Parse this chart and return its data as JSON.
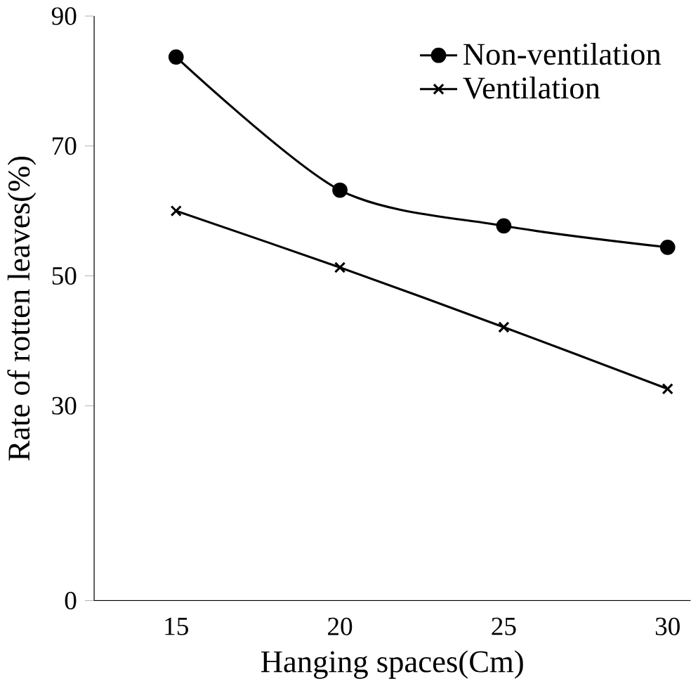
{
  "chart_data": {
    "type": "line",
    "xlabel": "Hanging spaces(Cm)",
    "ylabel": "Rate of rotten leaves(%)",
    "x": [
      15,
      20,
      25,
      30
    ],
    "series": [
      {
        "name": "Non-ventilation",
        "color": "#000000",
        "marker": "circle",
        "values": [
          83.7,
          63.2,
          57.7,
          54.4
        ]
      },
      {
        "name": "Ventilation",
        "color": "#000000",
        "marker": "cross",
        "values": [
          60,
          51.3,
          42.1,
          32.6
        ]
      }
    ],
    "xlim": [
      12.5,
      30.7
    ],
    "ylim": [
      0,
      90
    ],
    "xticks": [
      15,
      20,
      25,
      30
    ],
    "yticks": [
      0,
      30,
      50,
      70,
      90
    ],
    "grid": false,
    "legend": "top right"
  }
}
